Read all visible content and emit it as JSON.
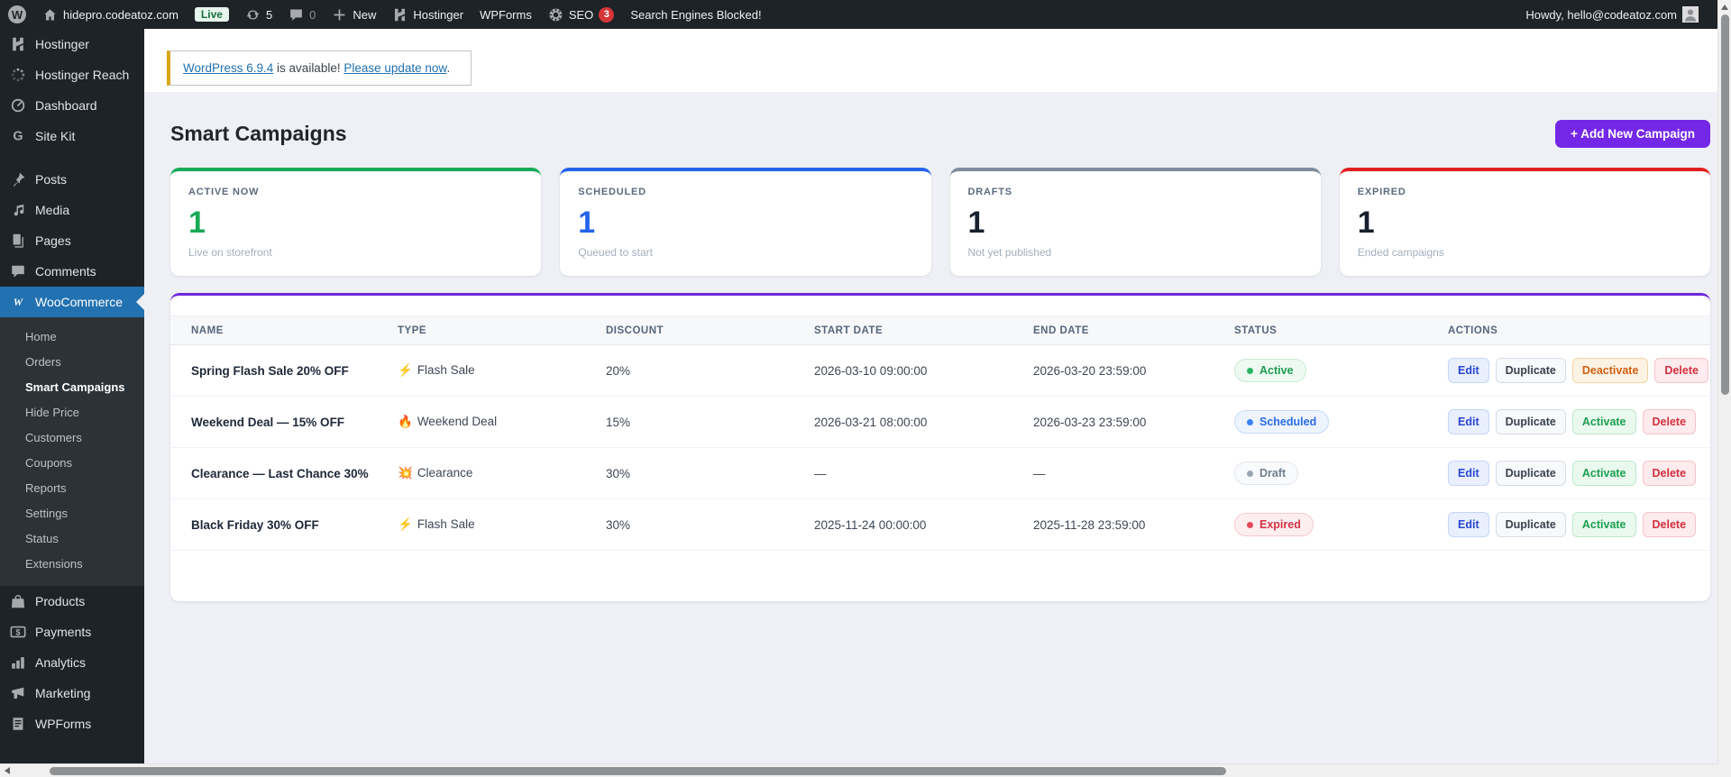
{
  "admin_bar": {
    "site_name": "hidepro.codeatoz.com",
    "live_badge": "Live",
    "updates_count": "5",
    "comments_count": "0",
    "new_label": "New",
    "hostinger_label": "Hostinger",
    "wpforms_label": "WPForms",
    "seo_label": "SEO",
    "seo_count": "3",
    "search_notice": "Search Engines Blocked!",
    "howdy": "Howdy, hello@codeatoz.com"
  },
  "sidebar": {
    "items": [
      {
        "label": "Hostinger",
        "icon": "hostinger-icon"
      },
      {
        "label": "Hostinger Reach",
        "icon": "reach-spinner-icon"
      },
      {
        "label": "Dashboard",
        "icon": "dashboard-gauge-icon"
      },
      {
        "label": "Site Kit",
        "icon": "site-kit-g-icon",
        "group_end": true
      },
      {
        "label": "Posts",
        "icon": "pin-icon"
      },
      {
        "label": "Media",
        "icon": "media-note-icon"
      },
      {
        "label": "Pages",
        "icon": "pages-icon"
      },
      {
        "label": "Comments",
        "icon": "comment-bubble-icon"
      },
      {
        "label": "WooCommerce",
        "icon": "woocommerce-icon",
        "active": true,
        "has_submenu": true
      },
      {
        "label": "Products",
        "icon": "shopping-bag-icon"
      },
      {
        "label": "Payments",
        "icon": "dollar-card-icon"
      },
      {
        "label": "Analytics",
        "icon": "bar-chart-icon"
      },
      {
        "label": "Marketing",
        "icon": "megaphone-icon"
      },
      {
        "label": "WPForms",
        "icon": "form-clipboard-icon"
      }
    ],
    "woocommerce_submenu": [
      "Home",
      "Orders",
      "Smart Campaigns",
      "Hide Price",
      "Customers",
      "Coupons",
      "Reports",
      "Settings",
      "Status",
      "Extensions"
    ],
    "active_submenu": "Smart Campaigns"
  },
  "update_notice": {
    "link_version": "WordPress 6.9.4",
    "text_middle": " is available! ",
    "link_action": "Please update now",
    "text_end": "."
  },
  "page": {
    "title": "Smart Campaigns",
    "add_button_label": "+ Add New Campaign"
  },
  "stats": [
    {
      "label": "ACTIVE NOW",
      "value": "1",
      "subtitle": "Live on storefront",
      "accent_color": "#18a957",
      "value_color": "#18a957"
    },
    {
      "label": "SCHEDULED",
      "value": "1",
      "subtitle": "Queued to start",
      "accent_color": "#2563eb",
      "value_color": "#2563eb"
    },
    {
      "label": "DRAFTS",
      "value": "1",
      "subtitle": "Not yet published",
      "accent_color": "#7f8c9b",
      "value_color": "#16202e"
    },
    {
      "label": "EXPIRED",
      "value": "1",
      "subtitle": "Ended campaigns",
      "accent_color": "#e02020",
      "value_color": "#16202e"
    }
  ],
  "campaigns_table": {
    "columns": [
      "NAME",
      "TYPE",
      "DISCOUNT",
      "START DATE",
      "END DATE",
      "STATUS",
      "ACTIONS"
    ],
    "rows": [
      {
        "name": "Spring Flash Sale 20% OFF",
        "type_icon": "⚡",
        "type_label": "Flash Sale",
        "discount": "20%",
        "start_date": "2026-03-10 09:00:00",
        "end_date": "2026-03-20 23:59:00",
        "status": "Active",
        "actions": [
          "Edit",
          "Duplicate",
          "Deactivate",
          "Delete"
        ]
      },
      {
        "name": "Weekend Deal — 15% OFF",
        "type_icon": "🔥",
        "type_label": "Weekend Deal",
        "discount": "15%",
        "start_date": "2026-03-21 08:00:00",
        "end_date": "2026-03-23 23:59:00",
        "status": "Scheduled",
        "actions": [
          "Edit",
          "Duplicate",
          "Activate",
          "Delete"
        ]
      },
      {
        "name": "Clearance — Last Chance 30%",
        "type_icon": "💥",
        "type_label": "Clearance",
        "discount": "30%",
        "start_date": "—",
        "end_date": "—",
        "status": "Draft",
        "actions": [
          "Edit",
          "Duplicate",
          "Activate",
          "Delete"
        ]
      },
      {
        "name": "Black Friday 30% OFF",
        "type_icon": "⚡",
        "type_label": "Flash Sale",
        "discount": "30%",
        "start_date": "2025-11-24 00:00:00",
        "end_date": "2025-11-28 23:59:00",
        "status": "Expired",
        "actions": [
          "Edit",
          "Duplicate",
          "Activate",
          "Delete"
        ]
      }
    ]
  },
  "colors": {
    "admin_dark": "#1d2327",
    "wp_blue": "#2271b1",
    "button_purple": "#7527e8",
    "table_top_border": "#6d28d9",
    "notice_yellow": "#dba617",
    "status_active": "#1d9d52",
    "status_scheduled": "#2b6be4",
    "status_draft": "#73808f",
    "status_expired": "#d23344"
  }
}
